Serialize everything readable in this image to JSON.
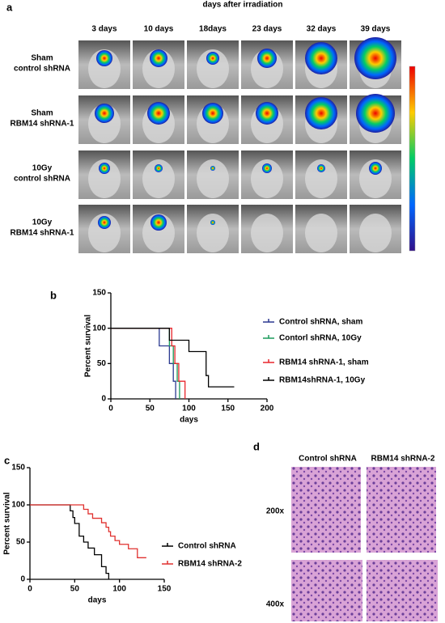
{
  "panel_a": {
    "label": "a",
    "title": "days after irradiation",
    "columns": [
      "3 days",
      "10 days",
      "18days",
      "23 days",
      "32 days",
      "39 days"
    ],
    "rows": [
      [
        "Sham",
        "control shRNA"
      ],
      [
        "Sham",
        "RBM14 shRNA-1"
      ],
      [
        "10Gy",
        "control shRNA"
      ],
      [
        "10Gy",
        "RBM14 shRNA-1"
      ]
    ]
  },
  "panel_d": {
    "label": "d",
    "columns": [
      "Control shRNA",
      "RBM14 shRNA-2"
    ],
    "rows": [
      "200x",
      "400x"
    ]
  },
  "chart_data": [
    {
      "type": "step",
      "panel": "b",
      "xlabel": "days",
      "ylabel": "Percent survival",
      "xlim": [
        0,
        200
      ],
      "xticks": [
        0,
        50,
        100,
        150,
        200
      ],
      "ylim": [
        0,
        150
      ],
      "yticks": [
        0,
        50,
        100,
        150
      ],
      "legend": "right",
      "series": [
        {
          "name": "Control shRNA, sham",
          "color": "#2b3990",
          "x": [
            0,
            62,
            75,
            80,
            83
          ],
          "values": [
            100,
            75,
            50,
            25,
            0
          ]
        },
        {
          "name": "Contorl shRNA, 10Gy",
          "color": "#1a9a5a",
          "x": [
            0,
            75,
            80,
            85,
            88
          ],
          "values": [
            100,
            75,
            50,
            25,
            0
          ]
        },
        {
          "name": "RBM14 shRNA-1, sham",
          "color": "#e8262c",
          "x": [
            0,
            78,
            82,
            87,
            95
          ],
          "values": [
            100,
            75,
            50,
            25,
            0
          ]
        },
        {
          "name": "RBM14shRNA-1, 10Gy",
          "color": "#000000",
          "x": [
            0,
            75,
            100,
            122,
            125,
            158
          ],
          "values": [
            100,
            83,
            67,
            33,
            17,
            17
          ]
        }
      ]
    },
    {
      "type": "step",
      "panel": "c",
      "xlabel": "days",
      "ylabel": "Percent survival",
      "xlim": [
        0,
        150
      ],
      "xticks": [
        0,
        50,
        100,
        150
      ],
      "ylim": [
        0,
        150
      ],
      "yticks": [
        0,
        50,
        100,
        150
      ],
      "legend": "right",
      "series": [
        {
          "name": "Control shRNA",
          "color": "#000000",
          "x": [
            0,
            45,
            48,
            50,
            55,
            60,
            65,
            72,
            80,
            85,
            88
          ],
          "values": [
            100,
            92,
            83,
            75,
            58,
            50,
            42,
            33,
            17,
            8,
            0
          ]
        },
        {
          "name": "RBM14 shRNA-2",
          "color": "#e0312f",
          "x": [
            0,
            60,
            65,
            70,
            80,
            85,
            88,
            90,
            95,
            100,
            110,
            120,
            130
          ],
          "values": [
            100,
            94,
            88,
            82,
            76,
            70,
            64,
            58,
            52,
            47,
            41,
            29,
            29
          ]
        }
      ]
    }
  ]
}
